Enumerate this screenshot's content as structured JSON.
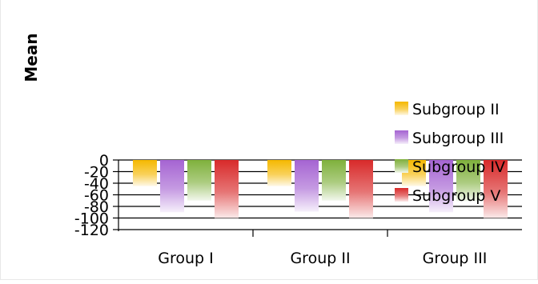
{
  "chart_data": {
    "type": "bar",
    "title": "",
    "xlabel": "",
    "ylabel": "Mean",
    "ylim": [
      -120,
      0
    ],
    "yticks": [
      "0",
      "-20",
      "-40",
      "-60",
      "-80",
      "-100",
      "-120"
    ],
    "categories": [
      "Group I",
      "Group II",
      "Group III"
    ],
    "series": [
      {
        "name": "Subgroup II",
        "values": [
          -45,
          -45,
          -45
        ],
        "color": "#f5b800"
      },
      {
        "name": "Subgroup III",
        "values": [
          -90,
          -89,
          -90
        ],
        "color": "#a564d2"
      },
      {
        "name": "Subgroup IV",
        "values": [
          -70,
          -70,
          -71
        ],
        "color": "#7fb03c"
      },
      {
        "name": "Subgroup V",
        "values": [
          -100,
          -100,
          -100
        ],
        "color": "#d82a2a"
      }
    ],
    "grid": true,
    "legend": "right"
  }
}
